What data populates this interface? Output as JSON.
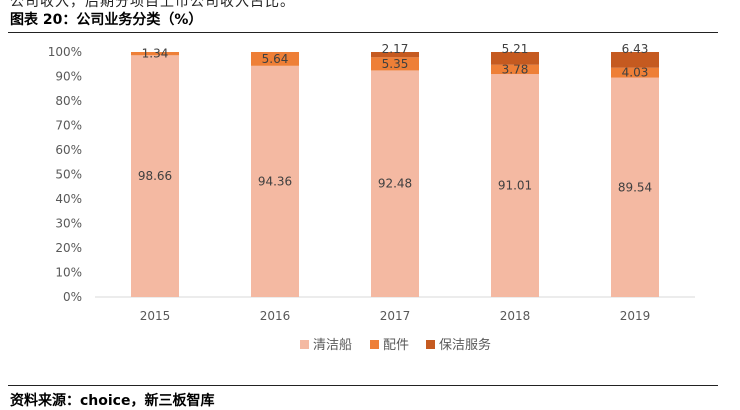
{
  "header": {
    "top_cut_text": "公司收入，后期分项目上市公司收入占比。",
    "figure_title": "图表 20：公司业务分类（%）"
  },
  "source": "资料来源：choice，新三板智库",
  "colors": {
    "清洁船": "#F4B9A2",
    "配件": "#EE7F37",
    "保洁服务": "#C55A20",
    "axis": "#D9D9D9",
    "text": "#595959"
  },
  "chart_data": {
    "type": "bar",
    "stacked": true,
    "percent": true,
    "categories": [
      "2015",
      "2016",
      "2017",
      "2018",
      "2019"
    ],
    "series": [
      {
        "name": "清洁船",
        "values": [
          98.66,
          94.36,
          92.48,
          91.01,
          89.54
        ]
      },
      {
        "name": "配件",
        "values": [
          1.34,
          5.64,
          5.35,
          3.78,
          4.03
        ]
      },
      {
        "name": "保洁服务",
        "values": [
          0,
          0,
          2.17,
          5.21,
          6.43
        ]
      }
    ],
    "yticks": [
      "0%",
      "10%",
      "20%",
      "30%",
      "40%",
      "50%",
      "60%",
      "70%",
      "80%",
      "90%",
      "100%"
    ],
    "ylim": [
      0,
      100
    ],
    "legend_position": "bottom",
    "grid": false,
    "title": "",
    "xlabel": "",
    "ylabel": ""
  }
}
